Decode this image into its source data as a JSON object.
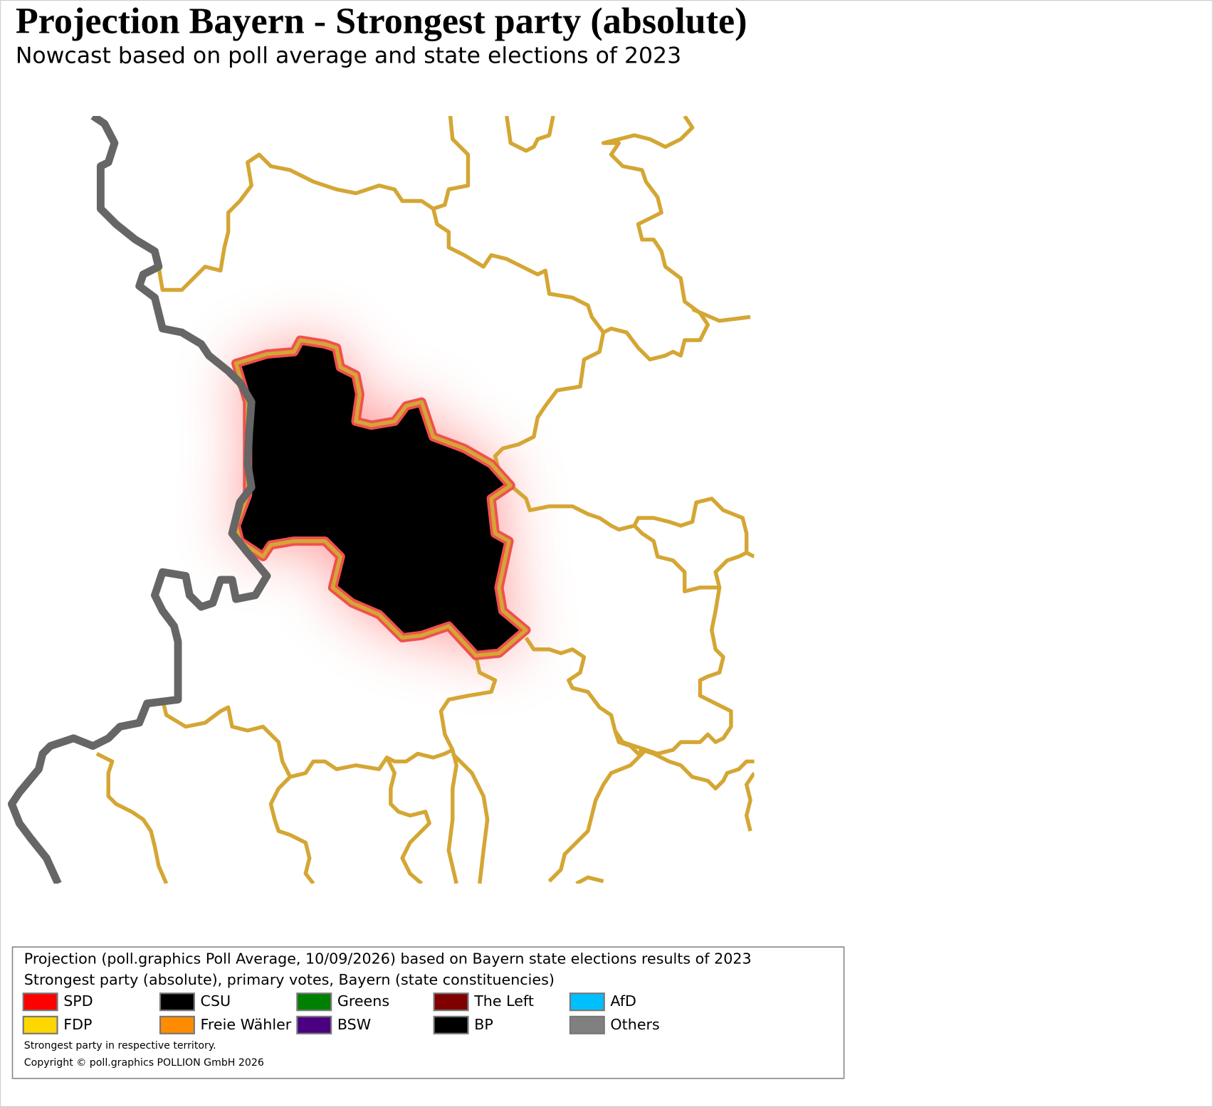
{
  "header": {
    "title": "Projection Bayern - Strongest party (absolute)",
    "subtitle": "Nowcast based on poll average and state elections of 2023"
  },
  "legend": {
    "lines": [
      "Projection (poll.graphics Poll Average, 10/09/2026) based on Bayern state elections results of 2023",
      "Strongest party (absolute), primary votes, Bayern (state constituencies)"
    ],
    "items": [
      {
        "label": "SPD",
        "color": "#ff0000"
      },
      {
        "label": "CSU",
        "color": "#000000"
      },
      {
        "label": "Greens",
        "color": "#008000"
      },
      {
        "label": "The Left",
        "color": "#800000"
      },
      {
        "label": "AfD",
        "color": "#00bfff"
      },
      {
        "label": "FDP",
        "color": "#ffd700"
      },
      {
        "label": "Freie Wähler",
        "color": "#ff8c00"
      },
      {
        "label": "BSW",
        "color": "#4b0082"
      },
      {
        "label": "BP",
        "color": "#000000"
      },
      {
        "label": "Others",
        "color": "#808080"
      }
    ],
    "notes": [
      "Strongest party in respective territory.",
      "Copyright © poll.graphics POLLION GmbH 2026"
    ]
  }
}
